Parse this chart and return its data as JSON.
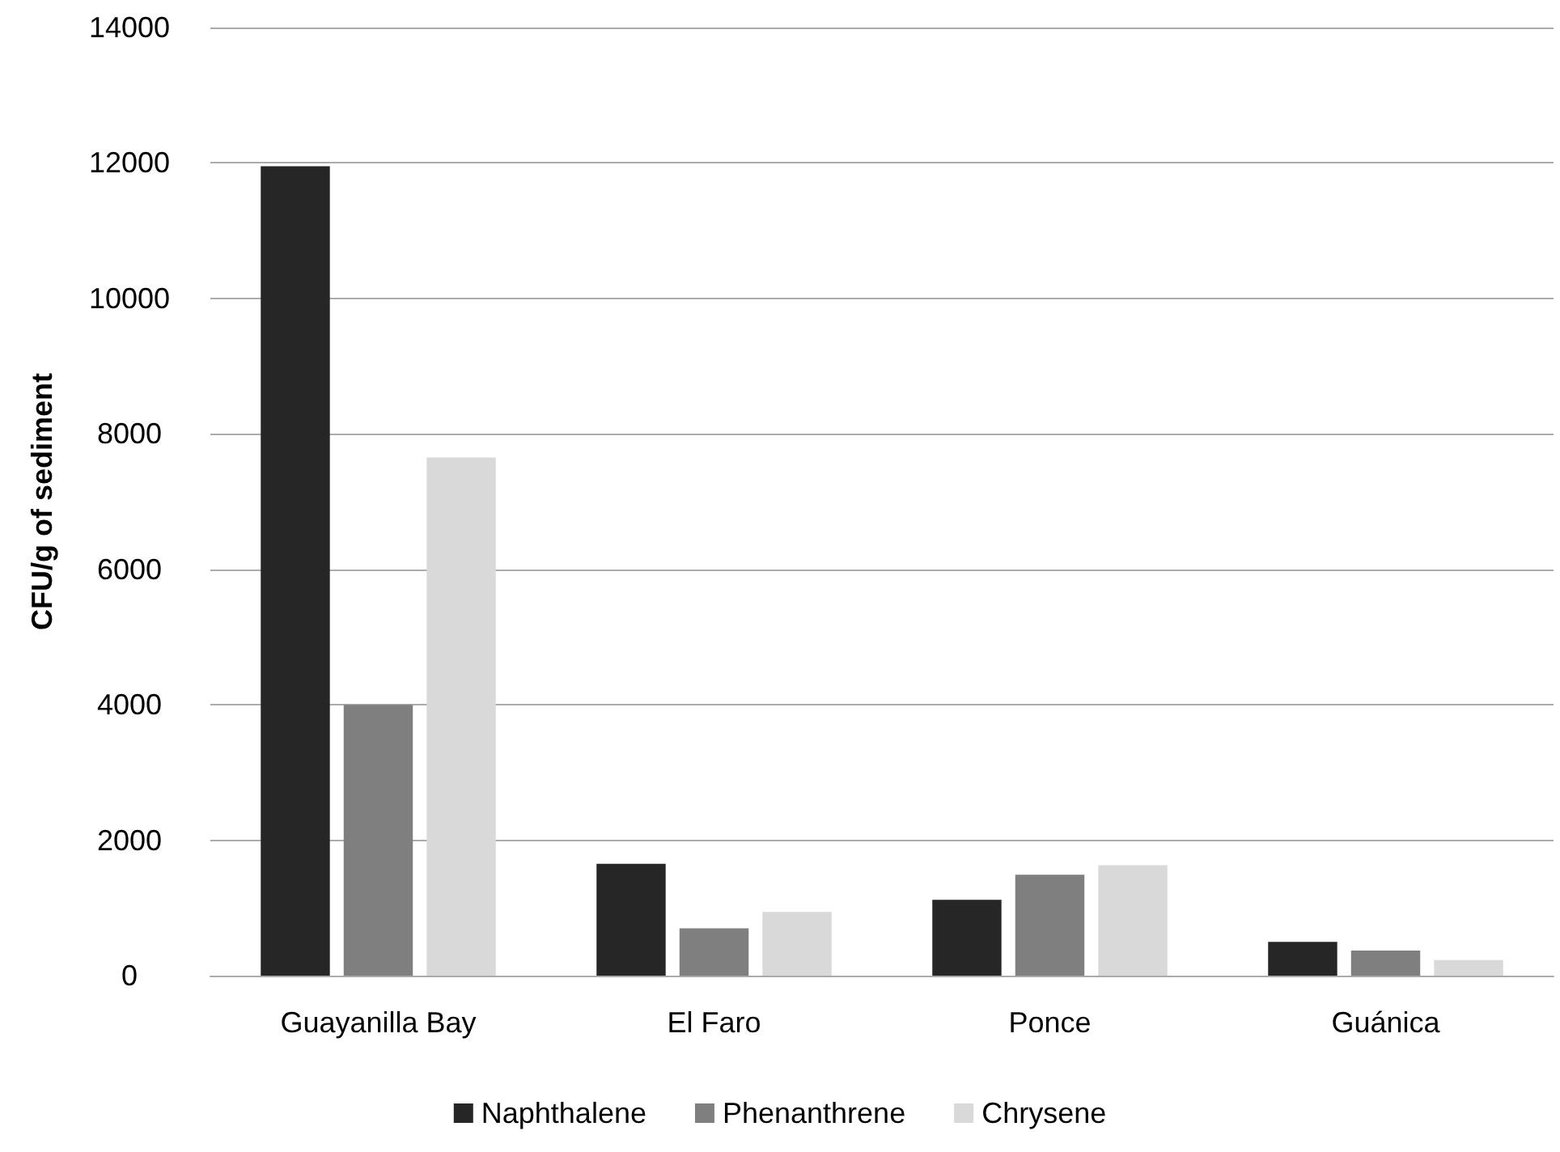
{
  "chart_data": {
    "type": "bar",
    "ylabel": "CFU/g of sediment",
    "categories": [
      "Guayanilla Bay",
      "El Faro",
      "Ponce",
      "Guánica"
    ],
    "series": [
      {
        "name": "Naphthalene",
        "color": "#262626",
        "values": [
          11950,
          1650,
          1120,
          500
        ]
      },
      {
        "name": "Phenanthrene",
        "color": "#7f7f7f",
        "values": [
          4000,
          700,
          1490,
          370
        ]
      },
      {
        "name": "Chrysene",
        "color": "#d9d9d9",
        "values": [
          7650,
          940,
          1630,
          230
        ]
      }
    ],
    "ylim": [
      0,
      14000
    ],
    "yticks": [
      0,
      2000,
      4000,
      6000,
      8000,
      10000,
      12000,
      14000
    ],
    "grid": "y",
    "legend": "bottom"
  }
}
